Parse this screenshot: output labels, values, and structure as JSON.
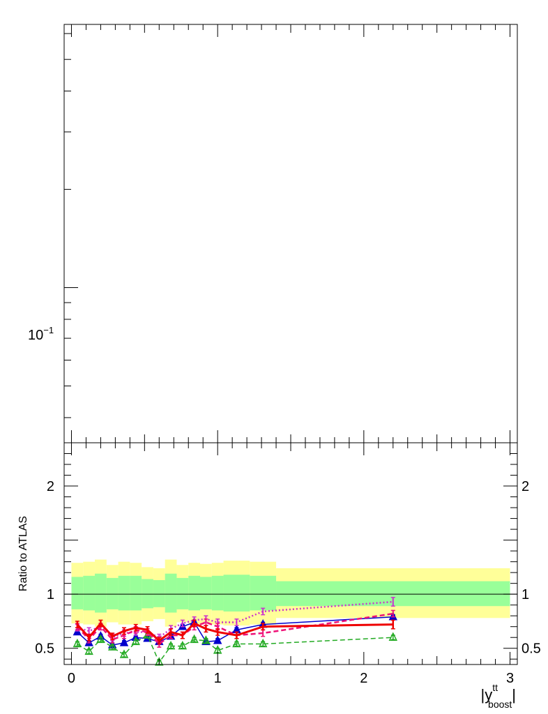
{
  "chart_data": [
    {
      "type": "line",
      "panel": "main",
      "yscale": "log",
      "title": "",
      "ylabel": "",
      "ytick_label": {
        "base": "10",
        "exp": "−1"
      },
      "ytick_value": 0.1,
      "series": []
    },
    {
      "type": "line",
      "panel": "ratio",
      "xlabel": {
        "main": "|y",
        "sup": "tt",
        "sub": "boost",
        "close": "|"
      },
      "ylabel": "Ratio to ATLAS",
      "xlim": [
        -0.05,
        3.05
      ],
      "ylim": [
        0.35,
        2.4
      ],
      "xticks": [
        "0",
        "1",
        "2",
        "3"
      ],
      "yticks": [
        "0.5",
        "1",
        "2"
      ],
      "reference_line": 1,
      "bins": [
        {
          "lo": 0.0,
          "hi": 0.08,
          "green_lo": 0.86,
          "green_hi": 1.16,
          "yellow_lo": 0.73,
          "yellow_hi": 1.29
        },
        {
          "lo": 0.08,
          "hi": 0.16,
          "green_lo": 0.85,
          "green_hi": 1.17,
          "yellow_lo": 0.72,
          "yellow_hi": 1.3
        },
        {
          "lo": 0.16,
          "hi": 0.24,
          "green_lo": 0.83,
          "green_hi": 1.19,
          "yellow_lo": 0.7,
          "yellow_hi": 1.32
        },
        {
          "lo": 0.24,
          "hi": 0.32,
          "green_lo": 0.86,
          "green_hi": 1.15,
          "yellow_lo": 0.74,
          "yellow_hi": 1.27
        },
        {
          "lo": 0.32,
          "hi": 0.4,
          "green_lo": 0.85,
          "green_hi": 1.17,
          "yellow_lo": 0.72,
          "yellow_hi": 1.3
        },
        {
          "lo": 0.4,
          "hi": 0.48,
          "green_lo": 0.85,
          "green_hi": 1.17,
          "yellow_lo": 0.72,
          "yellow_hi": 1.29
        },
        {
          "lo": 0.48,
          "hi": 0.56,
          "green_lo": 0.87,
          "green_hi": 1.14,
          "yellow_lo": 0.75,
          "yellow_hi": 1.25
        },
        {
          "lo": 0.56,
          "hi": 0.64,
          "green_lo": 0.88,
          "green_hi": 1.13,
          "yellow_lo": 0.77,
          "yellow_hi": 1.24
        },
        {
          "lo": 0.64,
          "hi": 0.72,
          "green_lo": 0.83,
          "green_hi": 1.19,
          "yellow_lo": 0.7,
          "yellow_hi": 1.32
        },
        {
          "lo": 0.72,
          "hi": 0.8,
          "green_lo": 0.86,
          "green_hi": 1.15,
          "yellow_lo": 0.74,
          "yellow_hi": 1.27
        },
        {
          "lo": 0.8,
          "hi": 0.88,
          "green_lo": 0.85,
          "green_hi": 1.17,
          "yellow_lo": 0.72,
          "yellow_hi": 1.29
        },
        {
          "lo": 0.88,
          "hi": 0.96,
          "green_lo": 0.86,
          "green_hi": 1.16,
          "yellow_lo": 0.73,
          "yellow_hi": 1.28
        },
        {
          "lo": 0.96,
          "hi": 1.04,
          "green_lo": 0.85,
          "green_hi": 1.17,
          "yellow_lo": 0.72,
          "yellow_hi": 1.29
        },
        {
          "lo": 1.04,
          "hi": 1.22,
          "green_lo": 0.84,
          "green_hi": 1.18,
          "yellow_lo": 0.71,
          "yellow_hi": 1.31
        },
        {
          "lo": 1.22,
          "hi": 1.4,
          "green_lo": 0.85,
          "green_hi": 1.17,
          "yellow_lo": 0.72,
          "yellow_hi": 1.3
        },
        {
          "lo": 1.4,
          "hi": 3.0,
          "green_lo": 0.89,
          "green_hi": 1.12,
          "yellow_lo": 0.78,
          "yellow_hi": 1.24
        }
      ],
      "series": [
        {
          "color": "#0000cc",
          "style": "solid",
          "width": 1.5,
          "marker": "triangle-filled",
          "x": [
            0.04,
            0.12,
            0.2,
            0.28,
            0.36,
            0.44,
            0.52,
            0.6,
            0.68,
            0.76,
            0.84,
            0.92,
            1.0,
            1.13,
            1.31,
            2.2
          ],
          "y": [
            0.65,
            0.55,
            0.61,
            0.53,
            0.55,
            0.6,
            0.59,
            0.56,
            0.61,
            0.7,
            0.74,
            0.56,
            0.57,
            0.67,
            0.72,
            0.79
          ],
          "err": [
            0.02,
            0.02,
            0.02,
            0.02,
            0.02,
            0.02,
            0.02,
            0.02,
            0.02,
            0.02,
            0.02,
            0.02,
            0.02,
            0.02,
            0.02,
            0.02
          ]
        },
        {
          "color": "#22aa22",
          "style": "dashed",
          "width": 1.5,
          "marker": "triangle-open",
          "x": [
            0.04,
            0.12,
            0.2,
            0.28,
            0.36,
            0.44,
            0.52,
            0.6,
            0.68,
            0.76,
            0.84,
            0.92,
            1.0,
            1.13,
            1.31,
            2.2
          ],
          "y": [
            0.54,
            0.47,
            0.58,
            0.51,
            0.44,
            0.56,
            0.62,
            0.37,
            0.52,
            0.52,
            0.58,
            0.57,
            0.48,
            0.54,
            0.54,
            0.6
          ],
          "err": [
            0.02,
            0.02,
            0.02,
            0.02,
            0.02,
            0.02,
            0.02,
            0.02,
            0.02,
            0.02,
            0.02,
            0.02,
            0.02,
            0.02,
            0.02,
            0.02
          ]
        },
        {
          "color": "#cc33cc",
          "style": "dotted",
          "width": 2.5,
          "marker": "none",
          "x": [
            0.04,
            0.12,
            0.2,
            0.28,
            0.36,
            0.44,
            0.52,
            0.6,
            0.68,
            0.76,
            0.84,
            0.92,
            1.0,
            1.13,
            1.31,
            2.2
          ],
          "y": [
            0.69,
            0.66,
            0.7,
            0.6,
            0.64,
            0.65,
            0.65,
            0.6,
            0.68,
            0.73,
            0.76,
            0.77,
            0.74,
            0.74,
            0.84,
            0.93
          ],
          "err": [
            0.03,
            0.03,
            0.03,
            0.03,
            0.03,
            0.03,
            0.03,
            0.03,
            0.03,
            0.03,
            0.03,
            0.03,
            0.03,
            0.03,
            0.03,
            0.04
          ]
        },
        {
          "color": "#ee1177",
          "style": "dashed",
          "width": 2.5,
          "marker": "none",
          "x": [
            0.04,
            0.12,
            0.2,
            0.28,
            0.36,
            0.44,
            0.52,
            0.6,
            0.68,
            0.76,
            0.84,
            0.92,
            1.0,
            1.13,
            1.31,
            2.2
          ],
          "y": [
            0.7,
            0.58,
            0.7,
            0.58,
            0.62,
            0.67,
            0.65,
            0.54,
            0.62,
            0.62,
            0.7,
            0.74,
            0.7,
            0.62,
            0.64,
            0.82
          ],
          "err": [
            0.03,
            0.03,
            0.03,
            0.03,
            0.03,
            0.03,
            0.03,
            0.03,
            0.03,
            0.03,
            0.03,
            0.03,
            0.03,
            0.03,
            0.03,
            0.03
          ]
        },
        {
          "color": "#ee0000",
          "style": "solid",
          "width": 3,
          "marker": "none",
          "x": [
            0.04,
            0.12,
            0.2,
            0.28,
            0.36,
            0.44,
            0.52,
            0.6,
            0.68,
            0.76,
            0.84,
            0.92,
            1.0,
            1.13,
            1.31,
            2.2
          ],
          "y": [
            0.72,
            0.6,
            0.73,
            0.61,
            0.66,
            0.69,
            0.67,
            0.57,
            0.65,
            0.62,
            0.73,
            0.68,
            0.65,
            0.62,
            0.7,
            0.72
          ],
          "err": [
            0.03,
            0.03,
            0.03,
            0.03,
            0.03,
            0.03,
            0.03,
            0.03,
            0.03,
            0.03,
            0.03,
            0.03,
            0.03,
            0.03,
            0.03,
            0.04
          ]
        }
      ]
    }
  ]
}
